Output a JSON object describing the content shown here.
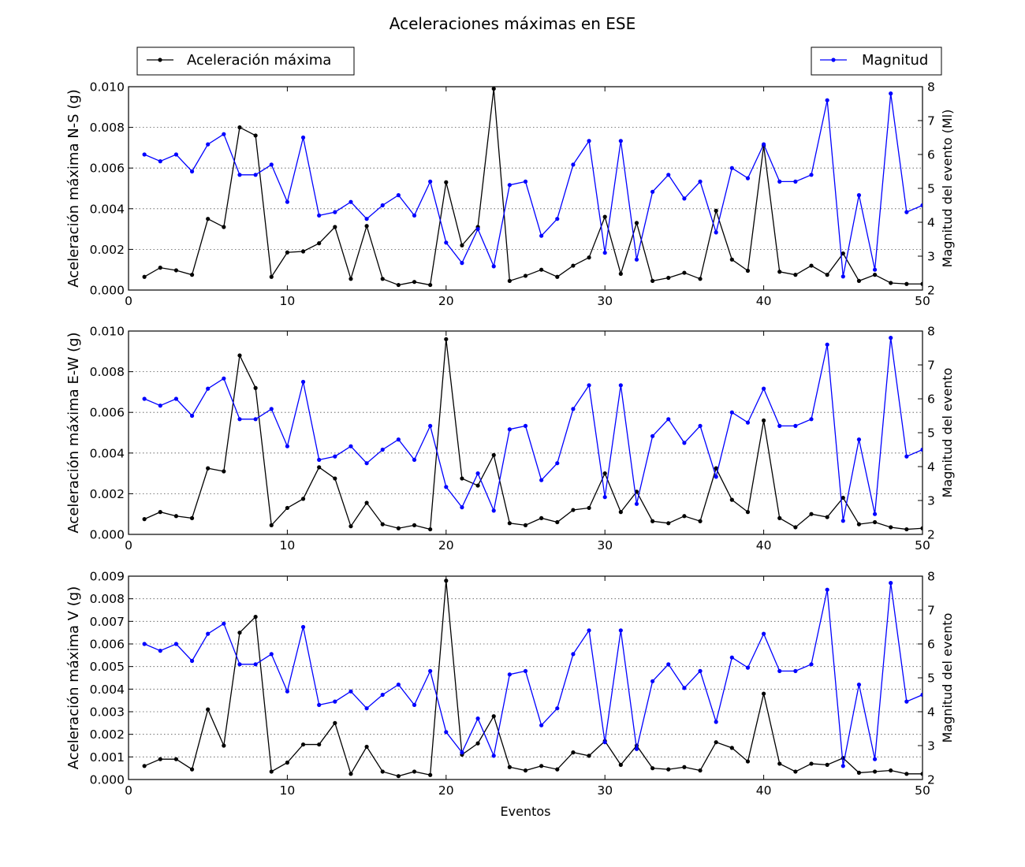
{
  "title": "Aceleraciones máximas en ESE",
  "colors": {
    "acceleration": "#000000",
    "magnitude": "#0000ff",
    "grid": "#555555"
  },
  "legend": {
    "left": "Aceleración máxima",
    "right": "Magnitud",
    "placement_left": "top-left",
    "placement_right": "top-right"
  },
  "chart_data": [
    {
      "type": "line",
      "ylabel": "Aceleración máxima N-S (g)",
      "y2label": "Magnitud del evento (Ml)",
      "xlabel": "",
      "xlim": [
        0,
        50
      ],
      "xticks": [
        0,
        10,
        20,
        30,
        40,
        50
      ],
      "ylim": [
        0,
        0.01
      ],
      "yticks": [
        "0.000",
        "0.002",
        "0.004",
        "0.006",
        "0.008",
        "0.010"
      ],
      "y2lim": [
        2,
        8
      ],
      "y2ticks": [
        2,
        3,
        4,
        5,
        6,
        7,
        8
      ],
      "grid": "y-dotted",
      "series": [
        {
          "name": "Aceleración máxima",
          "axis": "left",
          "x": [
            1,
            2,
            3,
            4,
            5,
            6,
            7,
            8,
            9,
            10,
            11,
            12,
            13,
            14,
            15,
            16,
            17,
            18,
            19,
            20,
            21,
            22,
            23,
            24,
            25,
            26,
            27,
            28,
            29,
            30,
            31,
            32,
            33,
            34,
            35,
            36,
            37,
            38,
            39,
            40,
            41,
            42,
            43,
            44,
            45,
            46,
            47,
            48,
            49,
            50
          ],
          "y": [
            0.00065,
            0.0011,
            0.00097,
            0.00075,
            0.0035,
            0.0031,
            0.008,
            0.0076,
            0.00065,
            0.00185,
            0.0019,
            0.0023,
            0.0031,
            0.00055,
            0.00315,
            0.00055,
            0.00025,
            0.0004,
            0.00025,
            0.0053,
            0.0022,
            0.0031,
            0.0099,
            0.00045,
            0.0007,
            0.001,
            0.00065,
            0.0012,
            0.0016,
            0.0036,
            0.0008,
            0.0033,
            0.00045,
            0.0006,
            0.00085,
            0.00055,
            0.0039,
            0.0015,
            0.00095,
            0.0071,
            0.0009,
            0.00075,
            0.0012,
            0.00075,
            0.0018,
            0.00045,
            0.00075,
            0.00035,
            0.0003,
            0.0003
          ]
        },
        {
          "name": "Magnitud",
          "axis": "right",
          "x": [
            1,
            2,
            3,
            4,
            5,
            6,
            7,
            8,
            9,
            10,
            11,
            12,
            13,
            14,
            15,
            16,
            17,
            18,
            19,
            20,
            21,
            22,
            23,
            24,
            25,
            26,
            27,
            28,
            29,
            30,
            31,
            32,
            33,
            34,
            35,
            36,
            37,
            38,
            39,
            40,
            41,
            42,
            43,
            44,
            45,
            46,
            47,
            48,
            49,
            50
          ],
          "y": [
            6.0,
            5.8,
            6.0,
            5.5,
            6.3,
            6.6,
            5.4,
            5.4,
            5.7,
            4.6,
            6.5,
            4.2,
            4.3,
            4.6,
            4.1,
            4.5,
            4.8,
            4.2,
            5.2,
            3.4,
            2.8,
            3.8,
            2.7,
            5.1,
            5.2,
            3.6,
            4.1,
            5.7,
            6.4,
            3.1,
            6.4,
            2.9,
            4.9,
            5.4,
            4.7,
            5.2,
            3.7,
            5.6,
            5.3,
            6.3,
            5.2,
            5.2,
            5.4,
            7.6,
            2.4,
            4.8,
            2.6,
            7.8,
            4.3,
            4.5
          ]
        }
      ]
    },
    {
      "type": "line",
      "ylabel": "Aceleración máxima E-W (g)",
      "y2label": "Magnitud del evento",
      "xlabel": "",
      "xlim": [
        0,
        50
      ],
      "xticks": [
        0,
        10,
        20,
        30,
        40,
        50
      ],
      "ylim": [
        0,
        0.01
      ],
      "yticks": [
        "0.000",
        "0.002",
        "0.004",
        "0.006",
        "0.008",
        "0.010"
      ],
      "y2lim": [
        2,
        8
      ],
      "y2ticks": [
        2,
        3,
        4,
        5,
        6,
        7,
        8
      ],
      "grid": "y-dotted",
      "series": [
        {
          "name": "Aceleración máxima",
          "axis": "left",
          "x": [
            1,
            2,
            3,
            4,
            5,
            6,
            7,
            8,
            9,
            10,
            11,
            12,
            13,
            14,
            15,
            16,
            17,
            18,
            19,
            20,
            21,
            22,
            23,
            24,
            25,
            26,
            27,
            28,
            29,
            30,
            31,
            32,
            33,
            34,
            35,
            36,
            37,
            38,
            39,
            40,
            41,
            42,
            43,
            44,
            45,
            46,
            47,
            48,
            49,
            50
          ],
          "y": [
            0.00075,
            0.0011,
            0.0009,
            0.0008,
            0.00325,
            0.0031,
            0.0088,
            0.0072,
            0.00045,
            0.0013,
            0.00175,
            0.0033,
            0.00275,
            0.0004,
            0.00155,
            0.0005,
            0.0003,
            0.00045,
            0.00025,
            0.0096,
            0.00275,
            0.0024,
            0.0039,
            0.00055,
            0.00045,
            0.0008,
            0.0006,
            0.0012,
            0.0013,
            0.003,
            0.0011,
            0.0021,
            0.00065,
            0.00055,
            0.0009,
            0.00065,
            0.00325,
            0.0017,
            0.0011,
            0.0056,
            0.0008,
            0.00035,
            0.001,
            0.00085,
            0.0018,
            0.0005,
            0.0006,
            0.00035,
            0.00025,
            0.0003
          ]
        },
        {
          "name": "Magnitud",
          "axis": "right",
          "x": [
            1,
            2,
            3,
            4,
            5,
            6,
            7,
            8,
            9,
            10,
            11,
            12,
            13,
            14,
            15,
            16,
            17,
            18,
            19,
            20,
            21,
            22,
            23,
            24,
            25,
            26,
            27,
            28,
            29,
            30,
            31,
            32,
            33,
            34,
            35,
            36,
            37,
            38,
            39,
            40,
            41,
            42,
            43,
            44,
            45,
            46,
            47,
            48,
            49,
            50
          ],
          "y": [
            6.0,
            5.8,
            6.0,
            5.5,
            6.3,
            6.6,
            5.4,
            5.4,
            5.7,
            4.6,
            6.5,
            4.2,
            4.3,
            4.6,
            4.1,
            4.5,
            4.8,
            4.2,
            5.2,
            3.4,
            2.8,
            3.8,
            2.7,
            5.1,
            5.2,
            3.6,
            4.1,
            5.7,
            6.4,
            3.1,
            6.4,
            2.9,
            4.9,
            5.4,
            4.7,
            5.2,
            3.7,
            5.6,
            5.3,
            6.3,
            5.2,
            5.2,
            5.4,
            7.6,
            2.4,
            4.8,
            2.6,
            7.8,
            4.3,
            4.5
          ]
        }
      ]
    },
    {
      "type": "line",
      "ylabel": "Aceleración máxima V (g)",
      "y2label": "Magnitud del evento",
      "xlabel": "Eventos",
      "xlim": [
        0,
        50
      ],
      "xticks": [
        0,
        10,
        20,
        30,
        40,
        50
      ],
      "ylim": [
        0,
        0.009
      ],
      "yticks": [
        "0.000",
        "0.001",
        "0.002",
        "0.003",
        "0.004",
        "0.005",
        "0.006",
        "0.007",
        "0.008",
        "0.009"
      ],
      "y2lim": [
        2,
        8
      ],
      "y2ticks": [
        2,
        3,
        4,
        5,
        6,
        7,
        8
      ],
      "grid": "y-dotted",
      "series": [
        {
          "name": "Aceleración máxima",
          "axis": "left",
          "x": [
            1,
            2,
            3,
            4,
            5,
            6,
            7,
            8,
            9,
            10,
            11,
            12,
            13,
            14,
            15,
            16,
            17,
            18,
            19,
            20,
            21,
            22,
            23,
            24,
            25,
            26,
            27,
            28,
            29,
            30,
            31,
            32,
            33,
            34,
            35,
            36,
            37,
            38,
            39,
            40,
            41,
            42,
            43,
            44,
            45,
            46,
            47,
            48,
            49,
            50
          ],
          "y": [
            0.0006,
            0.0009,
            0.0009,
            0.00045,
            0.0031,
            0.0015,
            0.0065,
            0.0072,
            0.00035,
            0.00075,
            0.00155,
            0.00155,
            0.0025,
            0.00025,
            0.00145,
            0.00035,
            0.00015,
            0.00035,
            0.0002,
            0.0088,
            0.0011,
            0.0016,
            0.0028,
            0.00055,
            0.0004,
            0.0006,
            0.00045,
            0.0012,
            0.00105,
            0.0017,
            0.00065,
            0.0015,
            0.0005,
            0.00045,
            0.00055,
            0.0004,
            0.00165,
            0.0014,
            0.0008,
            0.0038,
            0.0007,
            0.00035,
            0.0007,
            0.00065,
            0.00095,
            0.0003,
            0.00035,
            0.0004,
            0.00025,
            0.00025
          ]
        },
        {
          "name": "Magnitud",
          "axis": "right",
          "x": [
            1,
            2,
            3,
            4,
            5,
            6,
            7,
            8,
            9,
            10,
            11,
            12,
            13,
            14,
            15,
            16,
            17,
            18,
            19,
            20,
            21,
            22,
            23,
            24,
            25,
            26,
            27,
            28,
            29,
            30,
            31,
            32,
            33,
            34,
            35,
            36,
            37,
            38,
            39,
            40,
            41,
            42,
            43,
            44,
            45,
            46,
            47,
            48,
            49,
            50
          ],
          "y": [
            6.0,
            5.8,
            6.0,
            5.5,
            6.3,
            6.6,
            5.4,
            5.4,
            5.7,
            4.6,
            6.5,
            4.2,
            4.3,
            4.6,
            4.1,
            4.5,
            4.8,
            4.2,
            5.2,
            3.4,
            2.8,
            3.8,
            2.7,
            5.1,
            5.2,
            3.6,
            4.1,
            5.7,
            6.4,
            3.1,
            6.4,
            2.9,
            4.9,
            5.4,
            4.7,
            5.2,
            3.7,
            5.6,
            5.3,
            6.3,
            5.2,
            5.2,
            5.4,
            7.6,
            2.4,
            4.8,
            2.6,
            7.8,
            4.3,
            4.5
          ]
        }
      ]
    }
  ]
}
